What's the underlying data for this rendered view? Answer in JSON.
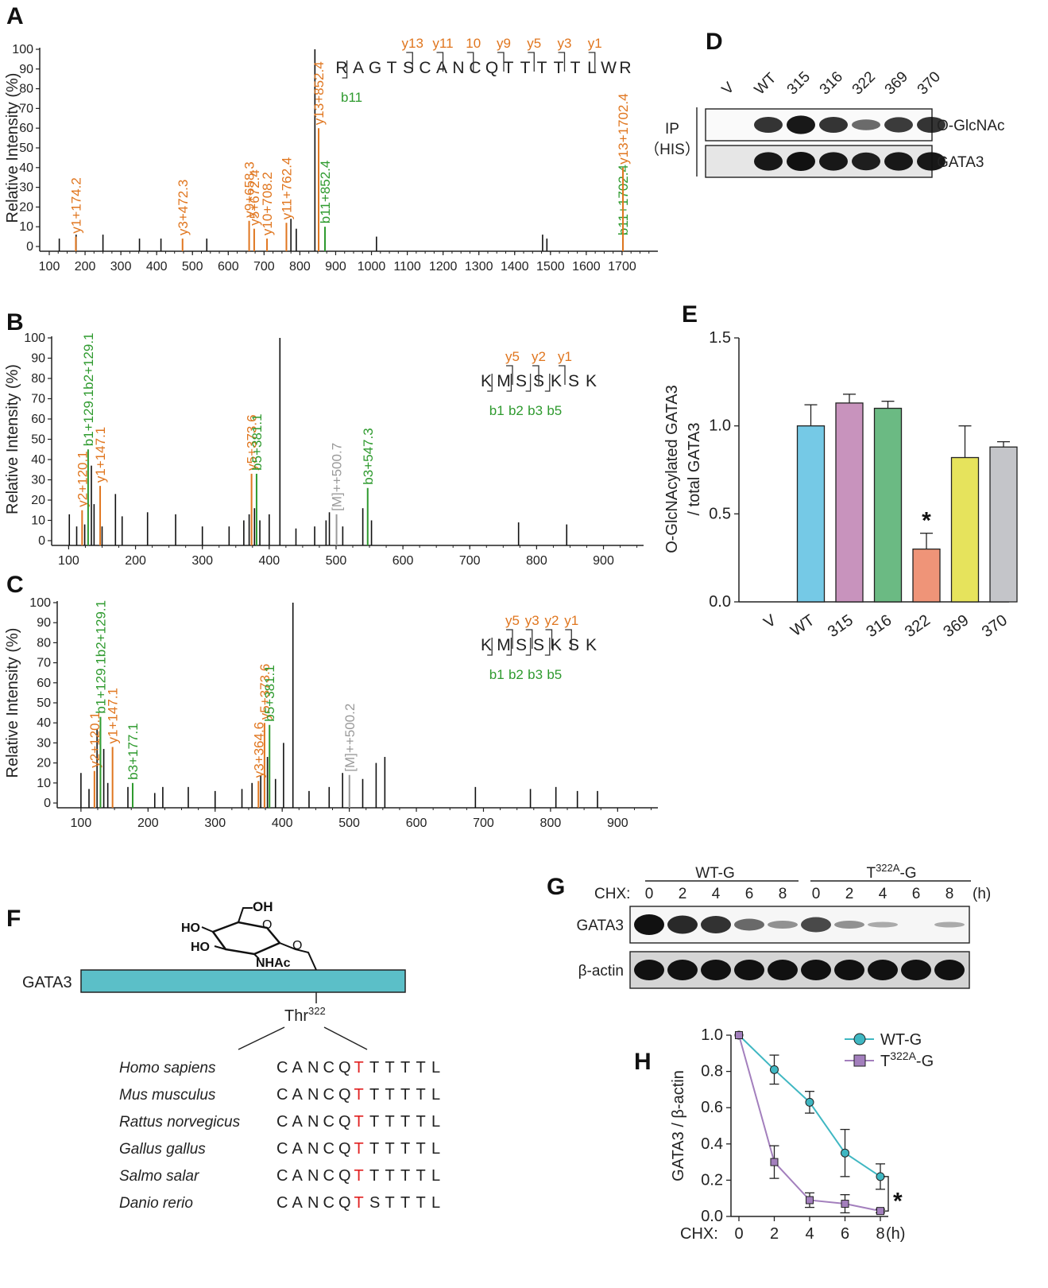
{
  "panels": {
    "A": "A",
    "B": "B",
    "C": "C",
    "D": "D",
    "E": "E",
    "F": "F",
    "G": "G",
    "H": "H"
  },
  "spectra": [
    {
      "label": "A",
      "ylabel": "Relative Intensity (%)",
      "xlim": [
        100,
        1800
      ],
      "xticks": [
        100,
        200,
        300,
        400,
        500,
        600,
        700,
        800,
        900,
        1000,
        1100,
        1200,
        1300,
        1400,
        1500,
        1600,
        1700
      ],
      "yticks": [
        0,
        10,
        20,
        30,
        40,
        50,
        60,
        70,
        80,
        90,
        100
      ],
      "peptide": [
        "R",
        "A",
        "G",
        "T",
        "S",
        "C",
        "A",
        "N",
        "C",
        "Q",
        "T",
        "T",
        "T",
        "T",
        "T",
        "L",
        "W",
        "R"
      ],
      "peptide_red": [
        3,
        4,
        10
      ],
      "frag_labels": [
        {
          "text": "y13",
          "color": "orange"
        },
        {
          "text": "y11",
          "color": "orange"
        },
        {
          "text": "10",
          "color": "orange"
        },
        {
          "text": "y9",
          "color": "orange"
        },
        {
          "text": "y5",
          "color": "orange"
        },
        {
          "text": "y3",
          "color": "orange"
        },
        {
          "text": "y1",
          "color": "orange"
        },
        {
          "text": "b11",
          "color": "green"
        }
      ],
      "labeled_peaks": [
        {
          "mz": 174.2,
          "y": 5,
          "label": "y1+174.2",
          "color": "orange"
        },
        {
          "mz": 472.3,
          "y": 4,
          "label": "y3+472.3",
          "color": "orange"
        },
        {
          "mz": 658.3,
          "y": 13,
          "label": "y9+658.3",
          "color": "orange"
        },
        {
          "mz": 672.4,
          "y": 9,
          "label": "y5+672.4",
          "color": "orange"
        },
        {
          "mz": 708.2,
          "y": 4,
          "label": "y10+708.2",
          "color": "orange"
        },
        {
          "mz": 762.4,
          "y": 12,
          "label": "y11+762.4",
          "color": "orange"
        },
        {
          "mz": 852.4,
          "y": 10,
          "label": "b11+852.4",
          "color": "green"
        },
        {
          "mz": 852.4,
          "y": 60,
          "label": "y13+852.4",
          "color": "orange"
        },
        {
          "mz": 1702.4,
          "y": 4,
          "label": "b11+1702.4",
          "color": "green"
        },
        {
          "mz": 1702.4,
          "y": 40,
          "label": "y13+1702.4",
          "color": "orange"
        }
      ],
      "other_peaks": [
        [
          128,
          4
        ],
        [
          175,
          6
        ],
        [
          250,
          6
        ],
        [
          352,
          4
        ],
        [
          412,
          4
        ],
        [
          540,
          4
        ],
        [
          775,
          14
        ],
        [
          790,
          9
        ],
        [
          842,
          100
        ],
        [
          870,
          3
        ],
        [
          1014,
          5
        ],
        [
          1478,
          6
        ],
        [
          1490,
          4
        ]
      ]
    },
    {
      "label": "B",
      "ylabel": "Relative Intensity (%)",
      "xlim": [
        90,
        960
      ],
      "xticks": [
        100,
        200,
        300,
        400,
        500,
        600,
        700,
        800,
        900
      ],
      "yticks": [
        0,
        10,
        20,
        30,
        40,
        50,
        60,
        70,
        80,
        90,
        100
      ],
      "peptide": [
        "K",
        "M",
        "S",
        "S",
        "K",
        "S",
        "K"
      ],
      "peptide_red": [
        2
      ],
      "frag_labels": [
        {
          "text": "y5",
          "color": "orange"
        },
        {
          "text": "y2",
          "color": "orange"
        },
        {
          "text": "y1",
          "color": "orange"
        },
        {
          "text": "b1",
          "color": "green"
        },
        {
          "text": "b2",
          "color": "green"
        },
        {
          "text": "b3",
          "color": "green"
        },
        {
          "text": "b5",
          "color": "green"
        }
      ],
      "labeled_peaks": [
        {
          "mz": 120.1,
          "y": 15,
          "label": "y2+120.1",
          "color": "orange"
        },
        {
          "mz": 129.1,
          "y": 45,
          "label": "b1+129.1b2+129.1",
          "color": "green"
        },
        {
          "mz": 147.1,
          "y": 27,
          "label": "y1+147.1",
          "color": "orange"
        },
        {
          "mz": 373.6,
          "y": 33,
          "label": "y5+373.6",
          "color": "orange"
        },
        {
          "mz": 381.1,
          "y": 33,
          "label": "b5+381.1",
          "color": "green"
        },
        {
          "mz": 500.7,
          "y": 13,
          "label": "[M]++500.7",
          "color": "gray"
        },
        {
          "mz": 547.3,
          "y": 26,
          "label": "b3+547.3",
          "color": "green"
        }
      ],
      "other_peaks": [
        [
          101,
          13
        ],
        [
          112,
          7
        ],
        [
          124,
          8
        ],
        [
          134,
          37
        ],
        [
          138,
          18
        ],
        [
          150,
          7
        ],
        [
          170,
          23
        ],
        [
          180,
          12
        ],
        [
          218,
          14
        ],
        [
          260,
          13
        ],
        [
          300,
          7
        ],
        [
          340,
          7
        ],
        [
          362,
          10
        ],
        [
          370,
          13
        ],
        [
          378,
          16
        ],
        [
          386,
          10
        ],
        [
          400,
          13
        ],
        [
          416,
          100
        ],
        [
          440,
          6
        ],
        [
          468,
          7
        ],
        [
          485,
          10
        ],
        [
          490,
          14
        ],
        [
          510,
          7
        ],
        [
          540,
          16
        ],
        [
          553,
          10
        ],
        [
          773,
          9
        ],
        [
          845,
          8
        ]
      ]
    },
    {
      "label": "C",
      "ylabel": "Relative Intensity (%)",
      "xlim": [
        80,
        960
      ],
      "xticks": [
        100,
        200,
        300,
        400,
        500,
        600,
        700,
        800,
        900
      ],
      "yticks": [
        0,
        10,
        20,
        30,
        40,
        50,
        60,
        70,
        80,
        90,
        100
      ],
      "peptide": [
        "K",
        "M",
        "S",
        "S",
        "K",
        "S",
        "K"
      ],
      "peptide_red": [
        3
      ],
      "frag_labels": [
        {
          "text": "y5",
          "color": "orange"
        },
        {
          "text": "y3",
          "color": "orange"
        },
        {
          "text": "y2",
          "color": "orange"
        },
        {
          "text": "y1",
          "color": "orange"
        },
        {
          "text": "b1",
          "color": "green"
        },
        {
          "text": "b2",
          "color": "green"
        },
        {
          "text": "b3",
          "color": "green"
        },
        {
          "text": "b5",
          "color": "green"
        }
      ],
      "labeled_peaks": [
        {
          "mz": 120.1,
          "y": 16,
          "label": "y2+120.1",
          "color": "orange"
        },
        {
          "mz": 129.1,
          "y": 43,
          "label": "b1+129.1b2+129.1",
          "color": "green"
        },
        {
          "mz": 147.1,
          "y": 28,
          "label": "y1+147.1",
          "color": "orange"
        },
        {
          "mz": 177.1,
          "y": 10,
          "label": "b3+177.1",
          "color": "green"
        },
        {
          "mz": 364.6,
          "y": 11,
          "label": "y3+364.6",
          "color": "orange"
        },
        {
          "mz": 373.6,
          "y": 40,
          "label": "y5+373.6",
          "color": "orange"
        },
        {
          "mz": 381.1,
          "y": 39,
          "label": "b5+381.1",
          "color": "green"
        },
        {
          "mz": 500.2,
          "y": 14,
          "label": "[M]++500.2",
          "color": "gray"
        }
      ],
      "other_peaks": [
        [
          100,
          15
        ],
        [
          112,
          7
        ],
        [
          124,
          37
        ],
        [
          134,
          27
        ],
        [
          140,
          10
        ],
        [
          170,
          8
        ],
        [
          210,
          5
        ],
        [
          222,
          8
        ],
        [
          260,
          8
        ],
        [
          300,
          6
        ],
        [
          340,
          7
        ],
        [
          355,
          10
        ],
        [
          368,
          14
        ],
        [
          378,
          23
        ],
        [
          390,
          12
        ],
        [
          402,
          30
        ],
        [
          416,
          100
        ],
        [
          440,
          6
        ],
        [
          470,
          8
        ],
        [
          490,
          15
        ],
        [
          520,
          12
        ],
        [
          540,
          20
        ],
        [
          553,
          23
        ],
        [
          688,
          8
        ],
        [
          770,
          7
        ],
        [
          808,
          8
        ],
        [
          840,
          6
        ],
        [
          870,
          6
        ]
      ]
    }
  ],
  "panelD": {
    "lanes": [
      "V",
      "WT",
      "315",
      "316",
      "322",
      "369",
      "370"
    ],
    "side_label_1": "IP",
    "side_label_2": "（HIS）",
    "rows": [
      {
        "label": "O-GlcNAc",
        "intensity": [
          0.0,
          0.75,
          0.95,
          0.75,
          0.35,
          0.7,
          0.75
        ]
      },
      {
        "label": "GATA3",
        "intensity": [
          0.0,
          0.95,
          1.0,
          0.95,
          0.9,
          0.95,
          0.95
        ]
      }
    ]
  },
  "chart_data": [
    {
      "type": "bar",
      "panel": "E",
      "categories": [
        "V",
        "WT",
        "315",
        "316",
        "322",
        "369",
        "370"
      ],
      "values": [
        0.0,
        1.0,
        1.13,
        1.1,
        0.3,
        0.82,
        0.88
      ],
      "errors": [
        0.0,
        0.12,
        0.05,
        0.04,
        0.09,
        0.18,
        0.03
      ],
      "colors": [
        "#ffffff",
        "#75c9e6",
        "#c893bd",
        "#6bba83",
        "#ef9478",
        "#e6e35c",
        "#c4c5c9"
      ],
      "ylabel": "O-GlcNAcylated GATA3 / total GATA3",
      "ylabel_line1": "O-GlcNAcylated GATA3",
      "ylabel_line2": "/ total GATA3",
      "yticks": [
        "0.0",
        "0.5",
        "1.0",
        "1.5"
      ],
      "ylim": [
        0,
        1.5
      ],
      "significance": {
        "category": "322",
        "mark": "*"
      }
    },
    {
      "type": "line",
      "panel": "H",
      "x": [
        0,
        2,
        4,
        6,
        8
      ],
      "xlabel": "CHX:",
      "xunit": "(h)",
      "ylabel": "GATA3 / β-actin",
      "ylim": [
        0,
        1.0
      ],
      "yticks": [
        "0.0",
        "0.2",
        "0.4",
        "0.6",
        "0.8",
        "1.0"
      ],
      "series": [
        {
          "name": "WT-G",
          "values": [
            1.0,
            0.81,
            0.63,
            0.35,
            0.22
          ],
          "errors": [
            0,
            0.08,
            0.06,
            0.13,
            0.07
          ],
          "color": "#3fb7c2"
        },
        {
          "name": "T322A-G",
          "values": [
            1.0,
            0.3,
            0.09,
            0.07,
            0.03
          ],
          "errors": [
            0,
            0.09,
            0.04,
            0.05,
            0.01
          ],
          "color": "#a37fbd"
        }
      ],
      "legend": [
        {
          "base": "WT-G",
          "sup": ""
        },
        {
          "base": "T",
          "sup": "322A",
          "rest": "-G"
        }
      ],
      "significance": "*"
    }
  ],
  "panelF": {
    "protein": "GATA3",
    "site_base": "Thr",
    "site_sup": "322",
    "sugar_labels": {
      "oh": "OH",
      "ho1": "HO",
      "ho2": "HO",
      "nhac": "NHAc",
      "o": "O",
      "o2": "O"
    },
    "species": [
      {
        "name": "Homo sapiens",
        "seq": "CANCQTTTTTL",
        "red": 5
      },
      {
        "name": "Mus musculus",
        "seq": "CANCQTTTTTL",
        "red": 5
      },
      {
        "name": "Rattus norvegicus",
        "seq": "CANCQTTTTTL",
        "red": 5
      },
      {
        "name": "Gallus gallus",
        "seq": "CANCQTTTTTL",
        "red": 5
      },
      {
        "name": "Salmo salar",
        "seq": "CANCQTTTTTL",
        "red": 5
      },
      {
        "name": "Danio rerio",
        "seq": "CANCQTSTTTL",
        "red": 5
      }
    ]
  },
  "panelG": {
    "group1": "WT-G",
    "group2_base": "T",
    "group2_sup": "322A",
    "group2_rest": "-G",
    "chx_label": "CHX:",
    "unit": "(h)",
    "times": [
      "0",
      "2",
      "4",
      "6",
      "8",
      "0",
      "2",
      "4",
      "6",
      "8"
    ],
    "rows": [
      {
        "label": "GATA3",
        "intensity": [
          1.0,
          0.85,
          0.8,
          0.45,
          0.2,
          0.65,
          0.2,
          0.05,
          0.0,
          0.05
        ]
      },
      {
        "label": "β-actin",
        "intensity": [
          1,
          1,
          1,
          1,
          1,
          1,
          1,
          1,
          1,
          1
        ]
      }
    ]
  }
}
